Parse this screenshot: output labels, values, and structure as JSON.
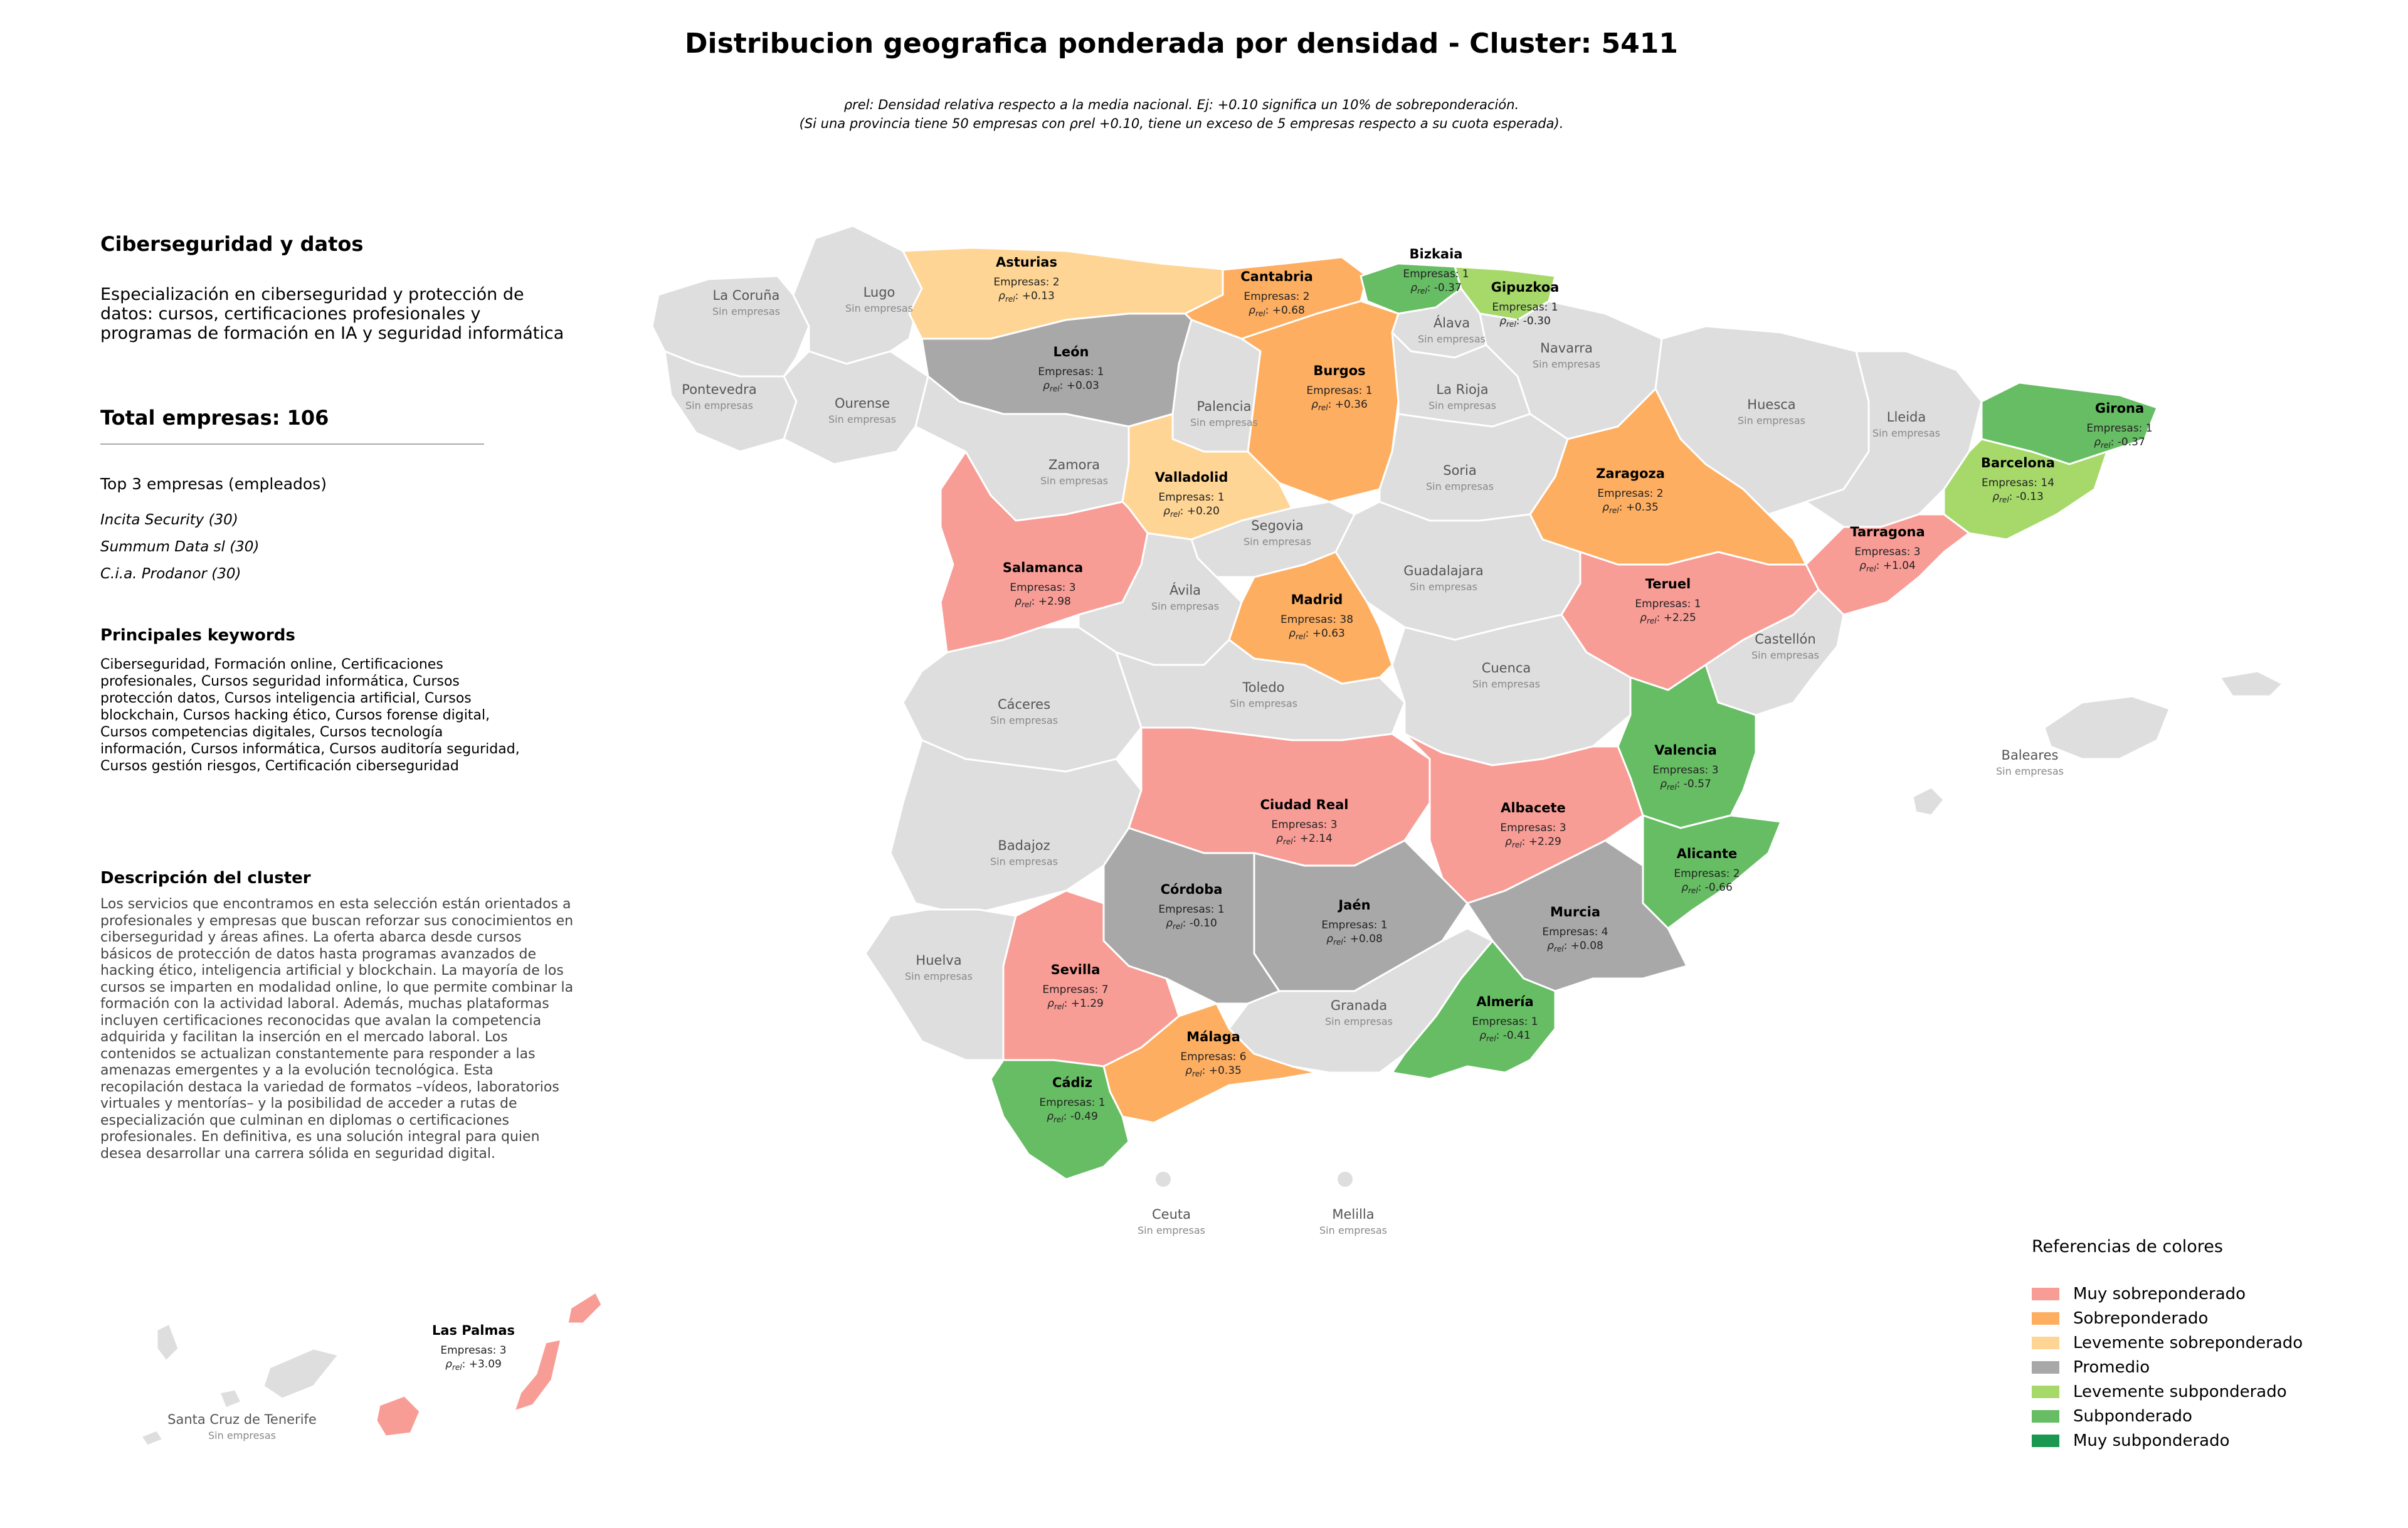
{
  "title": "Distribucion geografica ponderada por densidad - Cluster: 5411",
  "subtitle": [
    "ρrel: Densidad relativa respecto a la media nacional. Ej: +0.10 significa un 10% de sobreponderación.",
    "(Si una provincia tiene 50 empresas con ρrel +0.10, tiene un exceso de 5 empresas respecto a su cuota esperada)."
  ],
  "panel": {
    "heading": "Ciberseguridad y datos",
    "description": "Especialización en ciberseguridad y protección de datos: cursos, certificaciones profesionales y programas de formación en IA y seguridad informática",
    "total": "Total empresas: 106",
    "top3_heading": "Top 3 empresas (empleados)",
    "top3": [
      "Incita Security (30)",
      "Summum Data sl (30)",
      "C.i.a. Prodanor (30)"
    ],
    "keywords_heading": "Principales keywords",
    "keywords": "Ciberseguridad, Formación online, Certificaciones profesionales, Cursos seguridad informática, Cursos protección datos, Cursos inteligencia artificial, Cursos blockchain, Cursos hacking ético, Cursos forense digital, Cursos competencias digitales, Cursos tecnología información, Cursos informática, Cursos auditoría seguridad, Cursos gestión riesgos, Certificación ciberseguridad",
    "cluster_heading": "Descripción del cluster",
    "cluster_text": "Los servicios que encontramos en esta selección están orientados a profesionales y empresas que buscan reforzar sus conocimientos en ciberseguridad y áreas afines. La oferta abarca desde cursos básicos de protección de datos hasta programas avanzados de hacking ético, inteligencia artificial y blockchain. La mayoría de los cursos se imparten en modalidad online, lo que permite combinar la formación con la actividad laboral. Además, muchas plataformas incluyen certificaciones reconocidas que avalan la competencia adquirida y facilitan la inserción en el mercado laboral. Los contenidos se actualizan constantemente para responder a las amenazas emergentes y a la evolución tecnológica. Esta recopilación destaca la variedad de formatos –vídeos, laboratorios virtuales y mentorías– y la posibilidad de acceder a rutas de especialización que culminan en diplomas o certificaciones profesionales. En definitiva, es una solución integral para quien desea desarrollar una carrera sólida en seguridad digital."
  },
  "colors": {
    "muy_sobre": "#f89c96",
    "sobre": "#fdae61",
    "leve_sobre": "#fed594",
    "promedio": "#a8a8a8",
    "leve_sub": "#a6d96a",
    "sub": "#66bd63",
    "muy_sub": "#1a9850",
    "empty": "#dedede"
  },
  "legend": {
    "title": "Referencias de colores",
    "items": [
      {
        "label": "Muy sobreponderado",
        "color": "#f89c96"
      },
      {
        "label": "Sobreponderado",
        "color": "#fdae61"
      },
      {
        "label": "Levemente sobreponderado",
        "color": "#fed594"
      },
      {
        "label": "Promedio",
        "color": "#a8a8a8"
      },
      {
        "label": "Levemente subponderado",
        "color": "#a6d96a"
      },
      {
        "label": "Subponderado",
        "color": "#66bd63"
      },
      {
        "label": "Muy subponderado",
        "color": "#1a9850"
      }
    ]
  },
  "provinces": [
    {
      "name": "Asturias",
      "count": "Empresas: 2",
      "rho": "+0.13"
    },
    {
      "name": "Cantabria",
      "count": "Empresas: 2",
      "rho": "+0.68"
    },
    {
      "name": "Bizkaia",
      "count": "Empresas: 1",
      "rho": "-0.37"
    },
    {
      "name": "Gipuzkoa",
      "count": "Empresas: 1",
      "rho": "-0.30"
    },
    {
      "name": "León",
      "count": "Empresas: 1",
      "rho": "+0.03"
    },
    {
      "name": "Burgos",
      "count": "Empresas: 1",
      "rho": "+0.36"
    },
    {
      "name": "Girona",
      "count": "Empresas: 1",
      "rho": "-0.37"
    },
    {
      "name": "Barcelona",
      "count": "Empresas: 14",
      "rho": "-0.13"
    },
    {
      "name": "Valladolid",
      "count": "Empresas: 1",
      "rho": "+0.20"
    },
    {
      "name": "Zaragoza",
      "count": "Empresas: 2",
      "rho": "+0.35"
    },
    {
      "name": "Tarragona",
      "count": "Empresas: 3",
      "rho": "+1.04"
    },
    {
      "name": "Salamanca",
      "count": "Empresas: 3",
      "rho": "+2.98"
    },
    {
      "name": "Madrid",
      "count": "Empresas: 38",
      "rho": "+0.63"
    },
    {
      "name": "Teruel",
      "count": "Empresas: 1",
      "rho": "+2.25"
    },
    {
      "name": "Valencia",
      "count": "Empresas: 3",
      "rho": "-0.57"
    },
    {
      "name": "Ciudad Real",
      "count": "Empresas: 3",
      "rho": "+2.14"
    },
    {
      "name": "Albacete",
      "count": "Empresas: 3",
      "rho": "+2.29"
    },
    {
      "name": "Alicante",
      "count": "Empresas: 2",
      "rho": "-0.66"
    },
    {
      "name": "Córdoba",
      "count": "Empresas: 1",
      "rho": "-0.10"
    },
    {
      "name": "Jaén",
      "count": "Empresas: 1",
      "rho": "+0.08"
    },
    {
      "name": "Murcia",
      "count": "Empresas: 4",
      "rho": "+0.08"
    },
    {
      "name": "Sevilla",
      "count": "Empresas: 7",
      "rho": "+1.29"
    },
    {
      "name": "Almería",
      "count": "Empresas: 1",
      "rho": "-0.41"
    },
    {
      "name": "Málaga",
      "count": "Empresas: 6",
      "rho": "+0.35"
    },
    {
      "name": "Cádiz",
      "count": "Empresas: 1",
      "rho": "-0.49"
    },
    {
      "name": "Las Palmas",
      "count": "Empresas: 3",
      "rho": "+3.09"
    }
  ],
  "empty_label": "Sin empresas",
  "empty_provinces": [
    "La Coruña",
    "Lugo",
    "Pontevedra",
    "Ourense",
    "Álava",
    "Navarra",
    "Palencia",
    "La Rioja",
    "Huesca",
    "Lleida",
    "Zamora",
    "Soria",
    "Segovia",
    "Guadalajara",
    "Ávila",
    "Cáceres",
    "Toledo",
    "Cuenca",
    "Castellón",
    "Baleares",
    "Badajoz",
    "Huelva",
    "Granada",
    "Ceuta",
    "Melilla",
    "Santa Cruz de Tenerife"
  ]
}
